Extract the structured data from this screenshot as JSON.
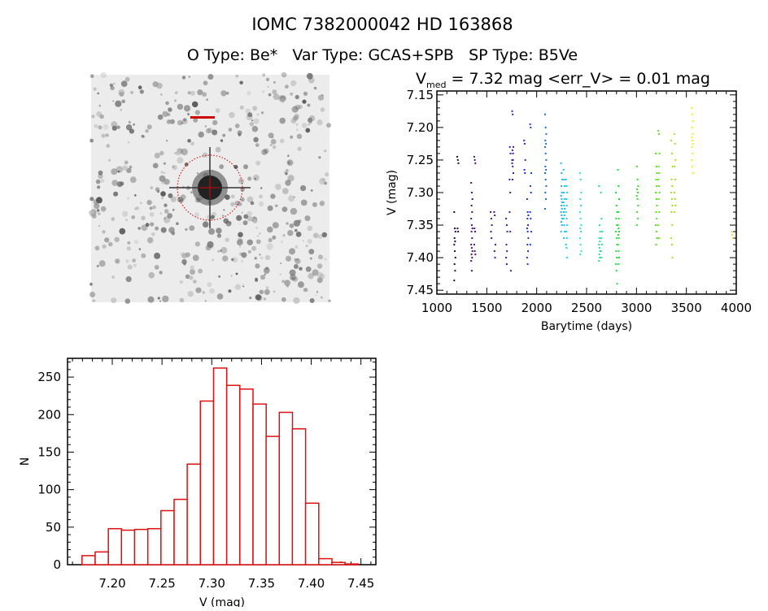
{
  "header": {
    "title": "IOMC 7382000042    HD 163868",
    "subtitle": "O Type: Be*   Var Type: GCAS+SPB   SP Type: B5Ve"
  },
  "chart_data": [
    {
      "type": "image",
      "description_label": "",
      "target_marker_color": "#cc0000"
    },
    {
      "type": "scatter",
      "title_prefix": "V",
      "title_subscript": "med",
      "title_rest": " = 7.32 mag <err_V> = 0.01 mag",
      "xlabel": "Barytime (days)",
      "ylabel": "V (mag)",
      "xlim": [
        1000,
        4000
      ],
      "ylim": [
        7.456,
        7.144
      ],
      "y_reversed": true,
      "xticks": [
        "1000",
        "1500",
        "2000",
        "2500",
        "3000",
        "3500",
        "4000"
      ],
      "yticks": [
        "7.15",
        "7.20",
        "7.25",
        "7.30",
        "7.35",
        "7.40",
        "7.45"
      ],
      "color_by": "time",
      "colormap": [
        [
          1150,
          "#1a0030"
        ],
        [
          1350,
          "#4a1070"
        ],
        [
          1700,
          "#3a1aa0"
        ],
        [
          1900,
          "#2030d0"
        ],
        [
          2100,
          "#1e70e0"
        ],
        [
          2270,
          "#18c0f0"
        ],
        [
          2450,
          "#30e0d8"
        ],
        [
          2640,
          "#20e090"
        ],
        [
          2820,
          "#18e030"
        ],
        [
          3200,
          "#50e020"
        ],
        [
          3380,
          "#a8e020"
        ],
        [
          3560,
          "#f0f020"
        ],
        [
          3960,
          "#f0d040"
        ]
      ],
      "seasons": [
        {
          "x": 1180,
          "y": [
            7.33,
            7.355,
            7.36,
            7.37,
            7.375,
            7.38,
            7.39,
            7.4,
            7.41,
            7.42,
            7.435
          ]
        },
        {
          "x": 1210,
          "y": [
            7.245,
            7.25,
            7.255,
            7.355,
            7.36
          ]
        },
        {
          "x": 1350,
          "y": [
            7.285,
            7.3,
            7.31,
            7.32,
            7.33,
            7.34,
            7.35,
            7.355,
            7.36,
            7.37,
            7.38,
            7.385,
            7.39,
            7.395,
            7.4,
            7.405,
            7.42
          ]
        },
        {
          "x": 1380,
          "y": [
            7.245,
            7.25,
            7.255,
            7.355,
            7.36,
            7.38,
            7.39,
            7.395
          ]
        },
        {
          "x": 1545,
          "y": [
            7.33,
            7.34,
            7.35,
            7.36,
            7.37
          ]
        },
        {
          "x": 1580,
          "y": [
            7.33,
            7.335,
            7.38,
            7.39,
            7.4
          ]
        },
        {
          "x": 1700,
          "y": [
            7.34,
            7.35,
            7.36,
            7.38,
            7.39,
            7.4,
            7.41
          ]
        },
        {
          "x": 1735,
          "y": [
            7.33,
            7.36,
            7.42,
            7.23,
            7.24,
            7.28,
            7.3
          ]
        },
        {
          "x": 1760,
          "y": [
            7.175,
            7.18,
            7.23,
            7.235,
            7.24,
            7.25,
            7.26,
            7.27,
            7.28,
            7.25,
            7.255
          ]
        },
        {
          "x": 1880,
          "y": [
            7.22,
            7.225,
            7.25,
            7.265,
            7.27
          ]
        },
        {
          "x": 1910,
          "y": [
            7.31,
            7.33,
            7.335,
            7.34,
            7.35,
            7.355,
            7.36,
            7.37,
            7.38,
            7.39,
            7.4,
            7.41
          ]
        },
        {
          "x": 1940,
          "y": [
            7.195,
            7.2,
            7.27,
            7.29,
            7.3,
            7.33,
            7.34,
            7.36,
            7.38
          ]
        },
        {
          "x": 2090,
          "y": [
            7.18,
            7.2,
            7.21,
            7.22,
            7.225,
            7.23,
            7.24,
            7.25,
            7.26,
            7.265,
            7.27,
            7.28,
            7.29,
            7.3,
            7.31,
            7.325
          ]
        },
        {
          "x": 2250,
          "y": [
            7.255,
            7.27,
            7.28,
            7.29,
            7.3,
            7.305,
            7.31,
            7.315,
            7.32,
            7.325,
            7.33,
            7.335,
            7.34,
            7.345,
            7.35,
            7.36
          ]
        },
        {
          "x": 2275,
          "y": [
            7.265,
            7.28,
            7.29,
            7.3,
            7.31,
            7.315,
            7.32,
            7.325,
            7.33,
            7.335,
            7.34,
            7.35,
            7.36,
            7.37
          ]
        },
        {
          "x": 2300,
          "y": [
            7.28,
            7.29,
            7.3,
            7.31,
            7.32,
            7.33,
            7.34,
            7.35,
            7.36,
            7.37,
            7.38,
            7.385,
            7.4
          ]
        },
        {
          "x": 2440,
          "y": [
            7.27,
            7.28,
            7.3,
            7.31,
            7.32,
            7.33,
            7.34,
            7.35,
            7.355,
            7.36,
            7.37,
            7.38,
            7.39,
            7.395
          ]
        },
        {
          "x": 2630,
          "y": [
            7.29,
            7.35,
            7.36,
            7.37,
            7.375,
            7.38,
            7.385,
            7.39,
            7.395,
            7.4,
            7.405
          ]
        },
        {
          "x": 2650,
          "y": [
            7.3,
            7.34,
            7.36,
            7.37,
            7.38,
            7.39,
            7.4
          ]
        },
        {
          "x": 2800,
          "y": [
            7.3,
            7.32,
            7.33,
            7.34,
            7.35,
            7.36,
            7.37,
            7.38,
            7.39,
            7.4,
            7.41,
            7.42,
            7.44
          ]
        },
        {
          "x": 2820,
          "y": [
            7.265,
            7.29,
            7.31,
            7.33,
            7.34,
            7.35,
            7.355,
            7.36,
            7.365,
            7.37,
            7.38,
            7.39,
            7.4,
            7.41
          ]
        },
        {
          "x": 3010,
          "y": [
            7.26,
            7.28,
            7.29,
            7.295,
            7.3,
            7.305,
            7.31,
            7.32,
            7.33,
            7.34,
            7.35
          ]
        },
        {
          "x": 3200,
          "y": [
            7.24,
            7.26,
            7.27,
            7.28,
            7.29,
            7.3,
            7.31,
            7.32,
            7.33,
            7.34,
            7.35,
            7.36,
            7.37,
            7.38
          ]
        },
        {
          "x": 3225,
          "y": [
            7.205,
            7.21,
            7.24,
            7.26,
            7.27,
            7.28,
            7.29,
            7.3,
            7.31,
            7.33,
            7.35,
            7.37
          ]
        },
        {
          "x": 3355,
          "y": [
            7.22,
            7.24,
            7.26,
            7.28,
            7.29,
            7.3,
            7.31,
            7.32,
            7.33,
            7.35,
            7.37,
            7.38,
            7.4
          ]
        },
        {
          "x": 3385,
          "y": [
            7.21,
            7.225,
            7.25,
            7.26,
            7.28,
            7.3,
            7.31,
            7.32,
            7.33
          ]
        },
        {
          "x": 3560,
          "y": [
            7.17,
            7.18,
            7.19,
            7.2,
            7.21,
            7.215,
            7.22,
            7.225,
            7.23,
            7.24,
            7.25,
            7.26,
            7.27
          ]
        },
        {
          "x": 3960,
          "y": [
            7.36,
            7.365,
            7.37
          ]
        }
      ]
    },
    {
      "type": "bar",
      "subtype": "histogram",
      "xlabel": "V (mag)",
      "ylabel": "N",
      "xlim": [
        7.155,
        7.465
      ],
      "ylim": [
        0,
        275
      ],
      "xticks": [
        "7.20",
        "7.25",
        "7.30",
        "7.35",
        "7.40",
        "7.45"
      ],
      "yticks": [
        "0",
        "50",
        "100",
        "150",
        "200",
        "250"
      ],
      "bin_start": 7.1696,
      "bin_width": 0.01322,
      "values": [
        12,
        17,
        48,
        46,
        47,
        48,
        72,
        87,
        134,
        218,
        262,
        239,
        234,
        214,
        171,
        203,
        181,
        82,
        8,
        3,
        1
      ],
      "bar_color": "#dd1111"
    }
  ]
}
